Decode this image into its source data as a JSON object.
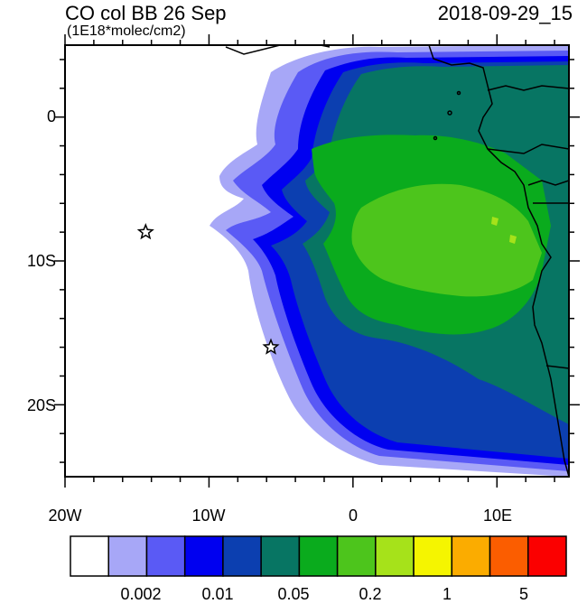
{
  "title_left": "CO col BB 26 Sep",
  "title_right": "2018-09-29_15",
  "units": "(1E18*molec/cm2)",
  "y_ticks": [
    "0",
    "10S",
    "20S"
  ],
  "x_ticks": [
    "20W",
    "10W",
    "0",
    "10E"
  ],
  "colorbar": {
    "colors": [
      "#ffffff",
      "#a7a7f7",
      "#5a5af5",
      "#0000f0",
      "#0c3fb0",
      "#077563",
      "#0aab1d",
      "#4dc51c",
      "#a6e21a",
      "#f5f500",
      "#fbac00",
      "#fb5d00",
      "#fb0000"
    ],
    "labels": [
      "0.002",
      "0.01",
      "0.05",
      "0.2",
      "1",
      "5"
    ]
  },
  "markers": [
    {
      "name": "star-west",
      "lon": -14.4,
      "lat": -8.0
    },
    {
      "name": "star-south",
      "lon": -5.7,
      "lat": -16.0
    }
  ]
}
